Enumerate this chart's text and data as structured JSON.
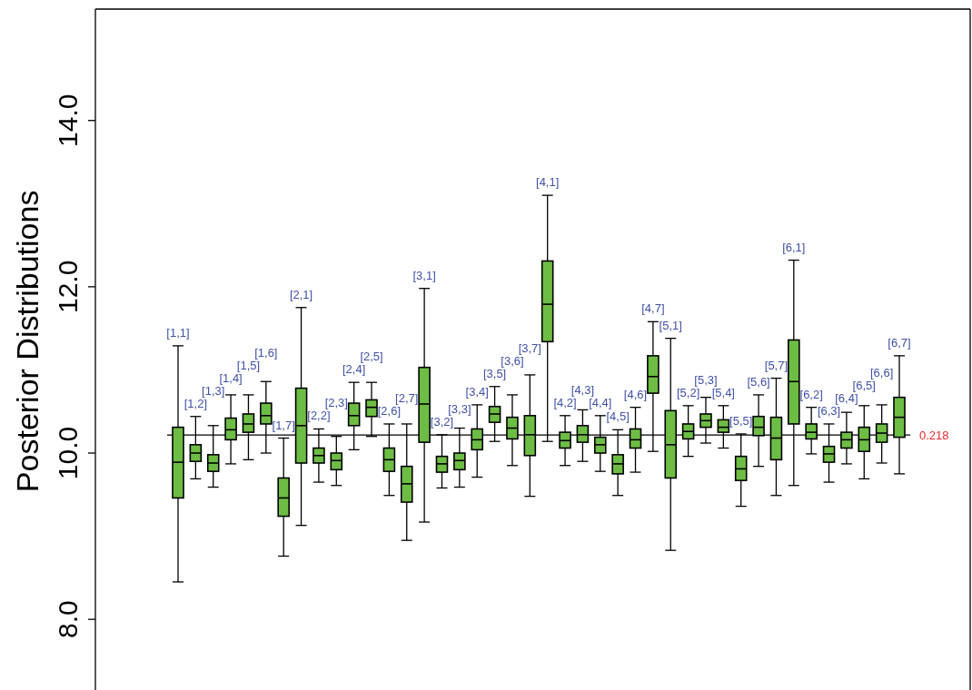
{
  "chart_data": {
    "type": "box",
    "ylabel": "Posterior Distributions",
    "ylim": [
      7.15,
      15.34
    ],
    "yticks": [
      {
        "value": 8,
        "label": "8.0"
      },
      {
        "value": 10,
        "label": "10.0"
      },
      {
        "value": 12,
        "label": "12.0"
      },
      {
        "value": 14,
        "label": "14.0"
      }
    ],
    "categories": [
      "[1,1]",
      "[1,2]",
      "[1,3]",
      "[1,4]",
      "[1,5]",
      "[1,6]",
      "[1,7]",
      "[2,1]",
      "[2,2]",
      "[2,3]",
      "[2,4]",
      "[2,5]",
      "[2,6]",
      "[2,7]",
      "[3,1]",
      "[3,2]",
      "[3,3]",
      "[3,4]",
      "[3,5]",
      "[3,6]",
      "[3,7]",
      "[4,1]",
      "[4,2]",
      "[4,3]",
      "[4,4]",
      "[4,5]",
      "[4,6]",
      "[4,7]",
      "[5,1]",
      "[5,2]",
      "[5,3]",
      "[5,4]",
      "[5,5]",
      "[5,6]",
      "[5,7]",
      "[6,1]",
      "[6,2]",
      "[6,3]",
      "[6,4]",
      "[6,5]",
      "[6,6]",
      "[6,7]"
    ],
    "color": "#6dbd45",
    "boxes": [
      {
        "low": 8.45,
        "q1": 9.46,
        "median": 9.89,
        "q3": 10.31,
        "high": 11.29
      },
      {
        "low": 9.69,
        "q1": 9.9,
        "median": 10.0,
        "q3": 10.1,
        "high": 10.44
      },
      {
        "low": 9.59,
        "q1": 9.78,
        "median": 9.88,
        "q3": 9.98,
        "high": 10.33
      },
      {
        "low": 9.87,
        "q1": 10.16,
        "median": 10.28,
        "q3": 10.42,
        "high": 10.7
      },
      {
        "low": 9.92,
        "q1": 10.25,
        "median": 10.35,
        "q3": 10.47,
        "high": 10.7
      },
      {
        "low": 10.0,
        "q1": 10.35,
        "median": 10.45,
        "q3": 10.6,
        "high": 10.86
      },
      {
        "low": 8.76,
        "q1": 9.24,
        "median": 9.46,
        "q3": 9.7,
        "high": 10.18
      },
      {
        "low": 9.13,
        "q1": 9.88,
        "median": 10.33,
        "q3": 10.78,
        "high": 11.75
      },
      {
        "low": 9.65,
        "q1": 9.88,
        "median": 9.97,
        "q3": 10.06,
        "high": 10.29
      },
      {
        "low": 9.61,
        "q1": 9.8,
        "median": 9.91,
        "q3": 10.0,
        "high": 10.2
      },
      {
        "low": 10.04,
        "q1": 10.33,
        "median": 10.45,
        "q3": 10.6,
        "high": 10.85
      },
      {
        "low": 10.2,
        "q1": 10.44,
        "median": 10.55,
        "q3": 10.64,
        "high": 10.85
      },
      {
        "low": 9.49,
        "q1": 9.78,
        "median": 9.92,
        "q3": 10.06,
        "high": 10.35
      },
      {
        "low": 8.95,
        "q1": 9.41,
        "median": 9.63,
        "q3": 9.84,
        "high": 10.35
      },
      {
        "low": 9.17,
        "q1": 10.13,
        "median": 10.59,
        "q3": 11.03,
        "high": 11.98
      },
      {
        "low": 9.58,
        "q1": 9.77,
        "median": 9.87,
        "q3": 9.96,
        "high": 10.22
      },
      {
        "low": 9.59,
        "q1": 9.8,
        "median": 9.91,
        "q3": 10.0,
        "high": 10.3
      },
      {
        "low": 9.71,
        "q1": 10.04,
        "median": 10.16,
        "q3": 10.29,
        "high": 10.58
      },
      {
        "low": 10.14,
        "q1": 10.37,
        "median": 10.47,
        "q3": 10.56,
        "high": 10.8
      },
      {
        "low": 9.85,
        "q1": 10.17,
        "median": 10.3,
        "q3": 10.43,
        "high": 10.7
      },
      {
        "low": 9.48,
        "q1": 9.97,
        "median": 10.22,
        "q3": 10.45,
        "high": 10.94
      },
      {
        "low": 10.14,
        "q1": 11.34,
        "median": 11.79,
        "q3": 12.31,
        "high": 13.1
      },
      {
        "low": 9.85,
        "q1": 10.06,
        "median": 10.15,
        "q3": 10.25,
        "high": 10.45
      },
      {
        "low": 9.9,
        "q1": 10.13,
        "median": 10.22,
        "q3": 10.33,
        "high": 10.52
      },
      {
        "low": 9.78,
        "q1": 10.0,
        "median": 10.1,
        "q3": 10.19,
        "high": 10.45
      },
      {
        "low": 9.49,
        "q1": 9.75,
        "median": 9.87,
        "q3": 9.98,
        "high": 10.28
      },
      {
        "low": 9.77,
        "q1": 10.06,
        "median": 10.16,
        "q3": 10.29,
        "high": 10.55
      },
      {
        "low": 10.02,
        "q1": 10.72,
        "median": 10.92,
        "q3": 11.17,
        "high": 11.58
      },
      {
        "low": 8.83,
        "q1": 9.7,
        "median": 10.1,
        "q3": 10.51,
        "high": 11.38
      },
      {
        "low": 9.96,
        "q1": 10.17,
        "median": 10.26,
        "q3": 10.35,
        "high": 10.57
      },
      {
        "low": 10.12,
        "q1": 10.31,
        "median": 10.39,
        "q3": 10.47,
        "high": 10.67
      },
      {
        "low": 10.06,
        "q1": 10.25,
        "median": 10.31,
        "q3": 10.4,
        "high": 10.57
      },
      {
        "low": 9.36,
        "q1": 9.67,
        "median": 9.81,
        "q3": 9.96,
        "high": 10.23
      },
      {
        "low": 9.84,
        "q1": 10.21,
        "median": 10.31,
        "q3": 10.44,
        "high": 10.7
      },
      {
        "low": 9.49,
        "q1": 9.92,
        "median": 10.18,
        "q3": 10.43,
        "high": 10.9
      },
      {
        "low": 9.61,
        "q1": 10.35,
        "median": 10.86,
        "q3": 11.36,
        "high": 12.32
      },
      {
        "low": 9.99,
        "q1": 10.17,
        "median": 10.25,
        "q3": 10.35,
        "high": 10.55
      },
      {
        "low": 9.65,
        "q1": 9.89,
        "median": 9.99,
        "q3": 10.08,
        "high": 10.35
      },
      {
        "low": 9.87,
        "q1": 10.06,
        "median": 10.16,
        "q3": 10.25,
        "high": 10.49
      },
      {
        "low": 9.69,
        "q1": 10.02,
        "median": 10.16,
        "q3": 10.31,
        "high": 10.57
      },
      {
        "low": 9.88,
        "q1": 10.13,
        "median": 10.24,
        "q3": 10.35,
        "high": 10.58
      },
      {
        "low": 9.75,
        "q1": 10.19,
        "median": 10.43,
        "q3": 10.67,
        "high": 11.17
      }
    ],
    "ref_lines": [
      {
        "axis": "y",
        "value": 10.218
      }
    ],
    "annotations": [
      "0.218"
    ]
  }
}
